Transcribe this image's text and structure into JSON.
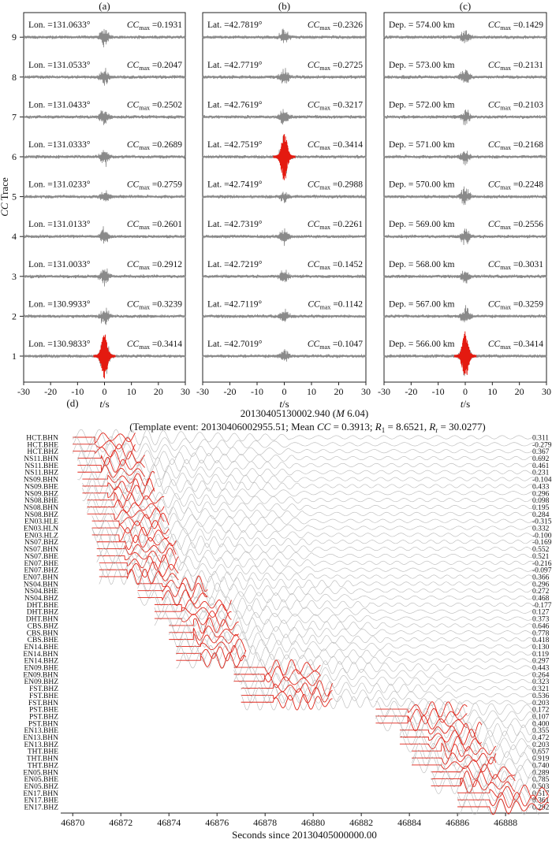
{
  "chart_data": [
    {
      "type": "line",
      "panel_label": "(a)",
      "ylabel_main": "CC",
      "ylabel_rest": " Trace",
      "xlabel_main": "t",
      "xlabel_rest": "/s",
      "xlim": [
        -30,
        30
      ],
      "xticks": [
        "-30",
        "-20",
        "-10",
        "0",
        "10",
        "20",
        "30"
      ],
      "yticks": [
        "1",
        "2",
        "3",
        "4",
        "5",
        "6",
        "7",
        "8",
        "9"
      ],
      "highlight_trace": 1,
      "cc_prefix": "CC",
      "cc_sub": "max",
      "traces": [
        {
          "trace": 9,
          "label": "Lon. =131.0633°",
          "cc": "=0.1931"
        },
        {
          "trace": 8,
          "label": "Lon. =131.0533°",
          "cc": "=0.2047"
        },
        {
          "trace": 7,
          "label": "Lon. =131.0433°",
          "cc": "=0.2502"
        },
        {
          "trace": 6,
          "label": "Lon. =131.0333°",
          "cc": "=0.2689"
        },
        {
          "trace": 5,
          "label": "Lon. =131.0233°",
          "cc": "=0.2759"
        },
        {
          "trace": 4,
          "label": "Lon. =131.0133°",
          "cc": "=0.2601"
        },
        {
          "trace": 3,
          "label": "Lon. =131.0033°",
          "cc": "=0.2912"
        },
        {
          "trace": 2,
          "label": "Lon. =130.9933°",
          "cc": "=0.3239"
        },
        {
          "trace": 1,
          "label": "Lon. =130.9833°",
          "cc": "=0.3414"
        }
      ]
    },
    {
      "type": "line",
      "panel_label": "(b)",
      "xlabel_main": "t",
      "xlabel_rest": "/s",
      "xlim": [
        -30,
        30
      ],
      "xticks": [
        "-30",
        "-20",
        "-10",
        "0",
        "10",
        "20",
        "30"
      ],
      "highlight_trace": 6,
      "cc_prefix": "CC",
      "cc_sub": "max",
      "traces": [
        {
          "trace": 9,
          "label": "Lat. =42.7819°",
          "cc": "=0.2326"
        },
        {
          "trace": 8,
          "label": "Lat. =42.7719°",
          "cc": "=0.2725"
        },
        {
          "trace": 7,
          "label": "Lat. =42.7619°",
          "cc": "=0.3217"
        },
        {
          "trace": 6,
          "label": "Lat. =42.7519°",
          "cc": "=0.3414"
        },
        {
          "trace": 5,
          "label": "Lat. =42.7419°",
          "cc": "=0.2988"
        },
        {
          "trace": 4,
          "label": "Lat. =42.7319°",
          "cc": "=0.2261"
        },
        {
          "trace": 3,
          "label": "Lat. =42.7219°",
          "cc": "=0.1452"
        },
        {
          "trace": 2,
          "label": "Lat. =42.7119°",
          "cc": "=0.1142"
        },
        {
          "trace": 1,
          "label": "Lat. =42.7019°",
          "cc": "=0.1047"
        }
      ]
    },
    {
      "type": "line",
      "panel_label": "(c)",
      "xlabel_main": "t",
      "xlabel_rest": "/s",
      "xlim": [
        -30,
        30
      ],
      "xticks": [
        "-30",
        "-20",
        "-10",
        "0",
        "10",
        "20",
        "30"
      ],
      "highlight_trace": 1,
      "cc_prefix": "CC",
      "cc_sub": "max",
      "traces": [
        {
          "trace": 9,
          "label": "Dep. = 574.00 km",
          "cc": "=0.1429"
        },
        {
          "trace": 8,
          "label": "Dep. = 573.00 km",
          "cc": "=0.2131"
        },
        {
          "trace": 7,
          "label": "Dep. = 572.00 km",
          "cc": "=0.2103"
        },
        {
          "trace": 6,
          "label": "Dep. = 571.00 km",
          "cc": "=0.2168"
        },
        {
          "trace": 5,
          "label": "Dep. = 570.00 km",
          "cc": "=0.2248"
        },
        {
          "trace": 4,
          "label": "Dep. = 569.00 km",
          "cc": "=0.2556"
        },
        {
          "trace": 3,
          "label": "Dep. = 568.00 km",
          "cc": "=0.3031"
        },
        {
          "trace": 2,
          "label": "Dep. = 567.00 km",
          "cc": "=0.3259"
        },
        {
          "trace": 1,
          "label": "Dep. = 566.00 km",
          "cc": "=0.3414"
        }
      ]
    },
    {
      "type": "line",
      "panel_label": "(d)",
      "title_line1_prefix": "20130405130002.940 (",
      "title_line1_m": "M",
      "title_line1_suffix": " 6.04)",
      "title_line2_p1": "(Template event: 20130406002955.51; Mean ",
      "title_line2_cc": "CC",
      "title_line2_p2": " = 0.3913; ",
      "title_line2_r1": "R",
      "title_line2_r1sub": "1",
      "title_line2_p3": " = 8.6521, ",
      "title_line2_r2": "R",
      "title_line2_r2sub": "r",
      "title_line2_p4": " = 30.0277)",
      "xlabel": "Seconds since 20130405000000.00",
      "xlim": [
        46869.5,
        46889.8
      ],
      "xticks": [
        "46870",
        "46872",
        "46874",
        "46876",
        "46878",
        "46880",
        "46882",
        "46884",
        "46886",
        "46888"
      ],
      "channels": [
        {
          "name": "HCT.BHN",
          "cc": "0.311",
          "red_start": 46870.0,
          "red_end": 46872.6
        },
        {
          "name": "HCT.BHE",
          "cc": "-0.279",
          "red_start": 46870.0,
          "red_end": 46872.6
        },
        {
          "name": "HCT.BHZ",
          "cc": "0.367",
          "red_start": 46870.0,
          "red_end": 46872.6
        },
        {
          "name": "NS11.BHN",
          "cc": "0.692",
          "red_start": 46870.2,
          "red_end": 46873.0
        },
        {
          "name": "NS11.BHE",
          "cc": "0.461",
          "red_start": 46870.2,
          "red_end": 46873.0
        },
        {
          "name": "NS11.BHZ",
          "cc": "0.231",
          "red_start": 46870.2,
          "red_end": 46873.0
        },
        {
          "name": "NS09.BHN",
          "cc": "-0.104",
          "red_start": 46870.4,
          "red_end": 46873.4
        },
        {
          "name": "NS09.BHE",
          "cc": "0.433",
          "red_start": 46870.4,
          "red_end": 46873.4
        },
        {
          "name": "NS09.BHZ",
          "cc": "0.296",
          "red_start": 46870.4,
          "red_end": 46873.4
        },
        {
          "name": "NS08.BHE",
          "cc": "0.098",
          "red_start": 46870.6,
          "red_end": 46873.8
        },
        {
          "name": "NS08.BHN",
          "cc": "0.195",
          "red_start": 46870.6,
          "red_end": 46873.8
        },
        {
          "name": "NS08.BHZ",
          "cc": "0.284",
          "red_start": 46870.6,
          "red_end": 46873.8
        },
        {
          "name": "EN03.HLE",
          "cc": "-0.315",
          "red_start": 46870.8,
          "red_end": 46874.0
        },
        {
          "name": "EN03.HLN",
          "cc": "0.332",
          "red_start": 46870.8,
          "red_end": 46874.0
        },
        {
          "name": "EN03.HLZ",
          "cc": "-0.100",
          "red_start": 46870.8,
          "red_end": 46874.0
        },
        {
          "name": "NS07.BHZ",
          "cc": "-0.169",
          "red_start": 46871.0,
          "red_end": 46874.3
        },
        {
          "name": "NS07.BHN",
          "cc": "0.552",
          "red_start": 46871.0,
          "red_end": 46874.3
        },
        {
          "name": "NS07.BHE",
          "cc": "0.521",
          "red_start": 46871.0,
          "red_end": 46874.3
        },
        {
          "name": "EN07.BHE",
          "cc": "-0.216",
          "red_start": 46871.1,
          "red_end": 46874.4
        },
        {
          "name": "EN07.BHZ",
          "cc": "-0.097",
          "red_start": 46871.1,
          "red_end": 46874.4
        },
        {
          "name": "EN07.BHN",
          "cc": "0.366",
          "red_start": 46871.1,
          "red_end": 46874.4
        },
        {
          "name": "NS04.BHN",
          "cc": "0.296",
          "red_start": 46872.7,
          "red_end": 46875.6
        },
        {
          "name": "NS04.BHE",
          "cc": "0.272",
          "red_start": 46872.7,
          "red_end": 46875.6
        },
        {
          "name": "NS04.BHZ",
          "cc": "0.468",
          "red_start": 46872.7,
          "red_end": 46875.6
        },
        {
          "name": "DHT.BHE",
          "cc": "-0.177",
          "red_start": 46873.4,
          "red_end": 46876.6
        },
        {
          "name": "DHT.BHZ",
          "cc": "0.127",
          "red_start": 46873.4,
          "red_end": 46876.6
        },
        {
          "name": "DHT.BHN",
          "cc": "0.373",
          "red_start": 46873.4,
          "red_end": 46876.6
        },
        {
          "name": "CBS.BHZ",
          "cc": "0.646",
          "red_start": 46874.0,
          "red_end": 46876.9
        },
        {
          "name": "CBS.BHN",
          "cc": "0.778",
          "red_start": 46874.0,
          "red_end": 46876.9
        },
        {
          "name": "CBS.BHE",
          "cc": "0.418",
          "red_start": 46874.0,
          "red_end": 46876.9
        },
        {
          "name": "EN14.BHE",
          "cc": "0.130",
          "red_start": 46874.3,
          "red_end": 46877.2
        },
        {
          "name": "EN14.BHN",
          "cc": "0.119",
          "red_start": 46874.3,
          "red_end": 46877.2
        },
        {
          "name": "EN14.BHZ",
          "cc": "0.297",
          "red_start": 46874.3,
          "red_end": 46877.2
        },
        {
          "name": "EN09.BHE",
          "cc": "0.443",
          "red_start": 46876.7,
          "red_end": 46880.3
        },
        {
          "name": "EN09.BHN",
          "cc": "0.264",
          "red_start": 46876.7,
          "red_end": 46880.3
        },
        {
          "name": "EN09.BHZ",
          "cc": "0.323",
          "red_start": 46876.7,
          "red_end": 46880.3
        },
        {
          "name": "FST.BHZ",
          "cc": "0.321",
          "red_start": 46877.0,
          "red_end": 46880.8
        },
        {
          "name": "FST.BHE",
          "cc": "0.536",
          "red_start": 46877.0,
          "red_end": 46880.8
        },
        {
          "name": "FST.BHN",
          "cc": "0.203",
          "red_start": 46877.0,
          "red_end": 46880.8
        },
        {
          "name": "PST.BHE",
          "cc": "0.172",
          "red_start": 46882.6,
          "red_end": 46886.4
        },
        {
          "name": "PST.BHZ",
          "cc": "0.107",
          "red_start": 46882.6,
          "red_end": 46886.4
        },
        {
          "name": "PST.BHN",
          "cc": "0.400",
          "red_start": 46882.6,
          "red_end": 46886.4
        },
        {
          "name": "EN13.BHE",
          "cc": "0.355",
          "red_start": 46883.6,
          "red_end": 46887.0
        },
        {
          "name": "EN13.BHN",
          "cc": "0.472",
          "red_start": 46883.6,
          "red_end": 46887.0
        },
        {
          "name": "EN13.BHZ",
          "cc": "0.203",
          "red_start": 46883.6,
          "red_end": 46887.0
        },
        {
          "name": "THT.BHE",
          "cc": "0.657",
          "red_start": 46884.1,
          "red_end": 46887.6
        },
        {
          "name": "THT.BHN",
          "cc": "0.919",
          "red_start": 46884.1,
          "red_end": 46887.6
        },
        {
          "name": "THT.BHZ",
          "cc": "0.740",
          "red_start": 46884.1,
          "red_end": 46887.6
        },
        {
          "name": "EN05.BHN",
          "cc": "0.289",
          "red_start": 46884.9,
          "red_end": 46888.4
        },
        {
          "name": "EN05.BHE",
          "cc": "0.785",
          "red_start": 46884.9,
          "red_end": 46888.4
        },
        {
          "name": "EN05.BHZ",
          "cc": "0.503",
          "red_start": 46884.9,
          "red_end": 46888.4
        },
        {
          "name": "EN17.BHN",
          "cc": "0.517",
          "red_start": 46886.0,
          "red_end": 46889.8
        },
        {
          "name": "EN17.BHE",
          "cc": "0.361",
          "red_start": 46886.0,
          "red_end": 46889.8
        },
        {
          "name": "EN17.BHZ",
          "cc": "0.292",
          "red_start": 46886.0,
          "red_end": 46889.8
        }
      ]
    }
  ]
}
